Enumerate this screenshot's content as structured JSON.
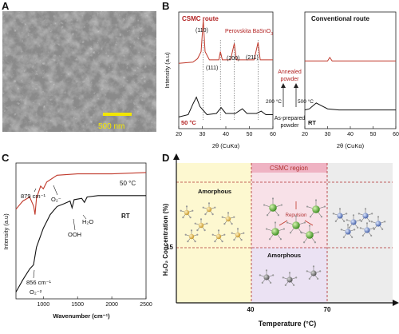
{
  "panels": {
    "A": {
      "letter": "A",
      "scale_bar_label": "500 nm"
    },
    "B": {
      "letter": "B",
      "left_title": "CSMC route",
      "right_title": "Conventional route",
      "phase_label": "Perovskita BaSnO",
      "phase_subscript": "3",
      "peak_labels": [
        "(110)",
        "(111)",
        "(200)",
        "(211)"
      ],
      "temp_label": "50 °C",
      "rt_label": "RT",
      "annealed_label_line1": "Annealed",
      "annealed_label_line2": "powder",
      "asprepared_label_line1": "As-prepared",
      "asprepared_label_line2": "powder",
      "anneal_temp_left": "200 °C",
      "anneal_temp_right": "500 °C",
      "ylabel": "Intensity (a.u)",
      "xlabel": "2θ (CuKα)",
      "xticks": [
        "20",
        "30",
        "40",
        "50",
        "60"
      ]
    },
    "C": {
      "letter": "C",
      "ylabel": "Intensity (a.u)",
      "xlabel": "Wavenumber (cm⁻¹)",
      "xticks": [
        "1000",
        "1500",
        "2000",
        "2500"
      ],
      "label_50c": "50 °C",
      "label_rt": "RT",
      "ann_879": "879 cm⁻¹",
      "ann_o2": "O₂⁻",
      "ann_ooh": "OOH",
      "ann_h2o": "H₂O",
      "ann_856": "856 cm⁻¹",
      "ann_o2_2": "O₂⁻²"
    },
    "D": {
      "letter": "D",
      "region_title": "CSMC region",
      "amorphous_top": "Amorphous",
      "amorphous_bottom": "Amorphous",
      "repulsion": "Repulsion",
      "ylabel": "H₂O₂ Concentration (%)",
      "xlabel": "Temperature (°C)",
      "ytick_15": "15",
      "xtick_40": "40",
      "xtick_70": "70"
    }
  },
  "chart_data": [
    {
      "type": "line",
      "panel": "B-left",
      "xlabel": "2θ (CuKα)",
      "ylabel": "Intensity (a.u)",
      "xlim": [
        20,
        60
      ],
      "xticks": [
        20,
        30,
        40,
        50,
        60
      ],
      "series": [
        {
          "name": "Annealed powder",
          "color": "#c0392b",
          "points": [
            [
              20,
              0.56
            ],
            [
              26,
              0.57
            ],
            [
              28,
              0.6
            ],
            [
              29.5,
              0.66
            ],
            [
              30.4,
              0.93
            ],
            [
              31.2,
              0.66
            ],
            [
              33,
              0.59
            ],
            [
              37,
              0.59
            ],
            [
              37.7,
              0.66
            ],
            [
              38.5,
              0.59
            ],
            [
              42,
              0.59
            ],
            [
              43.6,
              0.73
            ],
            [
              44.5,
              0.59
            ],
            [
              50,
              0.59
            ],
            [
              52,
              0.59
            ],
            [
              53.7,
              0.74
            ],
            [
              54.6,
              0.59
            ],
            [
              60,
              0.59
            ]
          ]
        },
        {
          "name": "As-prepared powder",
          "color": "#111111",
          "points": [
            [
              20,
              0.1
            ],
            [
              24,
              0.12
            ],
            [
              26,
              0.21
            ],
            [
              27.5,
              0.27
            ],
            [
              29,
              0.19
            ],
            [
              32,
              0.12
            ],
            [
              36,
              0.13
            ],
            [
              38,
              0.18
            ],
            [
              40,
              0.13
            ],
            [
              44,
              0.13
            ],
            [
              47,
              0.17
            ],
            [
              49,
              0.13
            ],
            [
              53,
              0.13
            ],
            [
              55,
              0.15
            ],
            [
              57,
              0.12
            ],
            [
              60,
              0.12
            ]
          ]
        }
      ]
    },
    {
      "type": "line",
      "panel": "B-right",
      "xlabel": "2θ (CuKα)",
      "xlim": [
        20,
        60
      ],
      "xticks": [
        20,
        30,
        40,
        50,
        60
      ],
      "series": [
        {
          "name": "Annealed powder",
          "color": "#c0392b",
          "points": [
            [
              20,
              0.58
            ],
            [
              30,
              0.58
            ],
            [
              31,
              0.61
            ],
            [
              32,
              0.58
            ],
            [
              40,
              0.58
            ],
            [
              50,
              0.58
            ],
            [
              60,
              0.58
            ]
          ]
        },
        {
          "name": "RT",
          "color": "#111111",
          "points": [
            [
              20,
              0.16
            ],
            [
              22,
              0.17
            ],
            [
              25,
              0.22
            ],
            [
              27,
              0.2
            ],
            [
              30,
              0.17
            ],
            [
              35,
              0.16
            ],
            [
              45,
              0.16
            ],
            [
              60,
              0.16
            ]
          ]
        }
      ]
    },
    {
      "type": "line",
      "panel": "C",
      "xlabel": "Wavenumber (cm⁻¹)",
      "ylabel": "Intensity (a.u)",
      "xlim": [
        600,
        2500
      ],
      "xticks": [
        1000,
        1500,
        2000,
        2500
      ],
      "series": [
        {
          "name": "50 °C",
          "color": "#c0392b",
          "points": [
            [
              600,
              0.66
            ],
            [
              700,
              0.72
            ],
            [
              800,
              0.75
            ],
            [
              860,
              0.68
            ],
            [
              879,
              0.62
            ],
            [
              900,
              0.74
            ],
            [
              960,
              0.83
            ],
            [
              1000,
              0.81
            ],
            [
              1050,
              0.86
            ],
            [
              1200,
              0.91
            ],
            [
              1500,
              0.92
            ],
            [
              2000,
              0.92
            ],
            [
              2500,
              0.93
            ]
          ]
        },
        {
          "name": "RT",
          "color": "#111111",
          "points": [
            [
              600,
              0.05
            ],
            [
              700,
              0.14
            ],
            [
              800,
              0.22
            ],
            [
              856,
              0.25
            ],
            [
              900,
              0.38
            ],
            [
              1000,
              0.52
            ],
            [
              1100,
              0.62
            ],
            [
              1200,
              0.68
            ],
            [
              1300,
              0.7
            ],
            [
              1390,
              0.72
            ],
            [
              1420,
              0.67
            ],
            [
              1450,
              0.73
            ],
            [
              1560,
              0.74
            ],
            [
              1600,
              0.71
            ],
            [
              1640,
              0.75
            ],
            [
              1800,
              0.76
            ],
            [
              2000,
              0.76
            ],
            [
              2500,
              0.76
            ]
          ]
        }
      ]
    },
    {
      "type": "other",
      "panel": "D",
      "xlabel": "Temperature (°C)",
      "ylabel": "H₂O₂ Concentration (%)",
      "x_marks": [
        40,
        70
      ],
      "y_marks": [
        15
      ],
      "regions": [
        "Amorphous",
        "CSMC region",
        "Amorphous"
      ]
    }
  ]
}
